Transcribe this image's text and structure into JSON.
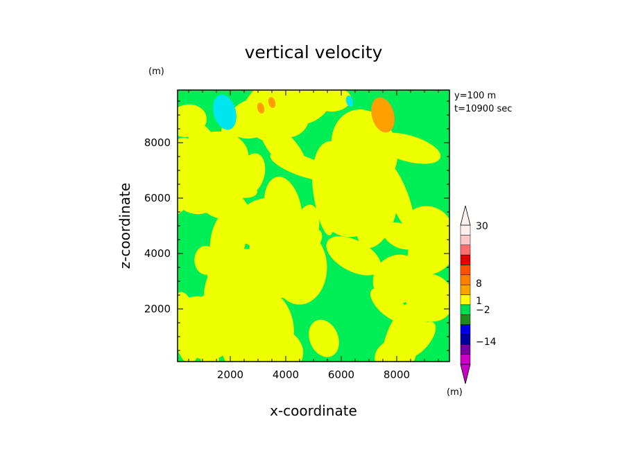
{
  "chart_data": {
    "type": "heatmap",
    "title": "vertical velocity",
    "xlabel": "x-coordinate",
    "ylabel": "z-coordinate",
    "x_unit": "(m)",
    "y_unit": "(m)",
    "xlim": [
      100,
      9900
    ],
    "ylim": [
      100,
      9900
    ],
    "x_ticks": [
      2000,
      4000,
      6000,
      8000
    ],
    "y_ticks": [
      2000,
      4000,
      6000,
      8000
    ],
    "annotations": [
      "y=100  m",
      "t=10900  sec"
    ],
    "colorbar": {
      "unit": "(m)",
      "labels": [
        "30",
        "8",
        "1",
        "−2",
        "−14"
      ],
      "colors": [
        "#c800c8",
        "#7800a0",
        "#0000a0",
        "#0000e6",
        "#1e8c1e",
        "#00dc50",
        "#ffff00",
        "#ffa000",
        "#ff8000",
        "#ff5000",
        "#e10000",
        "#ff6e6e",
        "#ffc8c8",
        "#fff0f0"
      ]
    },
    "regions": [
      {
        "value": "cyan",
        "color": "#00e6f0",
        "x": 1800,
        "z": 9100
      },
      {
        "value": "cyan",
        "color": "#00e6f0",
        "x": 6300,
        "z": 9500
      },
      {
        "value": "orange",
        "color": "#ffa000",
        "x": 7500,
        "z": 9000
      },
      {
        "value": "orange",
        "color": "#ffa000",
        "x": 3500,
        "z": 9450
      },
      {
        "value": "orange",
        "color": "#ffa000",
        "x": 3100,
        "z": 9250
      }
    ]
  }
}
